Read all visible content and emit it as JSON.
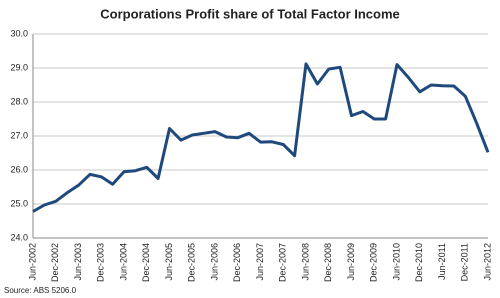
{
  "chart_data": {
    "type": "line",
    "title": "Corporations Profit share of Total Factor Income",
    "source": "Source: ABS 5206.0",
    "categories": [
      "Jun-2002",
      null,
      "Dec-2002",
      null,
      "Jun-2003",
      null,
      "Dec-2003",
      null,
      "Jun-2004",
      null,
      "Dec-2004",
      null,
      "Jun-2005",
      null,
      "Dec-2005",
      null,
      "Jun-2006",
      null,
      "Dec-2006",
      null,
      "Jun-2007",
      null,
      "Dec-2007",
      null,
      "Jun-2008",
      null,
      "Dec-2008",
      null,
      "Jun-2009",
      null,
      "Dec-2009",
      null,
      "Jun-2010",
      null,
      "Dec-2010",
      null,
      "Jun-2011",
      null,
      "Dec-2011",
      null,
      "Jun-2012"
    ],
    "values": [
      24.78,
      24.97,
      25.08,
      25.33,
      25.55,
      25.87,
      25.8,
      25.58,
      25.95,
      25.98,
      26.08,
      25.75,
      27.22,
      26.88,
      27.03,
      27.08,
      27.13,
      26.97,
      26.95,
      27.08,
      26.82,
      26.83,
      26.75,
      26.42,
      29.12,
      28.53,
      28.97,
      29.02,
      27.6,
      27.72,
      27.5,
      27.5,
      29.1,
      28.72,
      28.3,
      28.5,
      28.48,
      28.47,
      28.17,
      27.38,
      26.52
    ],
    "color": "#1f497d",
    "ylim": [
      24,
      30
    ],
    "yticks": [
      {
        "value": 24,
        "label": "24.0"
      },
      {
        "value": 25,
        "label": "25.0"
      },
      {
        "value": 26,
        "label": "26.0"
      },
      {
        "value": 27,
        "label": "27.0"
      },
      {
        "value": 28,
        "label": "28.0"
      },
      {
        "value": 29,
        "label": "29.0"
      },
      {
        "value": 30,
        "label": "30.0"
      }
    ],
    "grid": true
  }
}
